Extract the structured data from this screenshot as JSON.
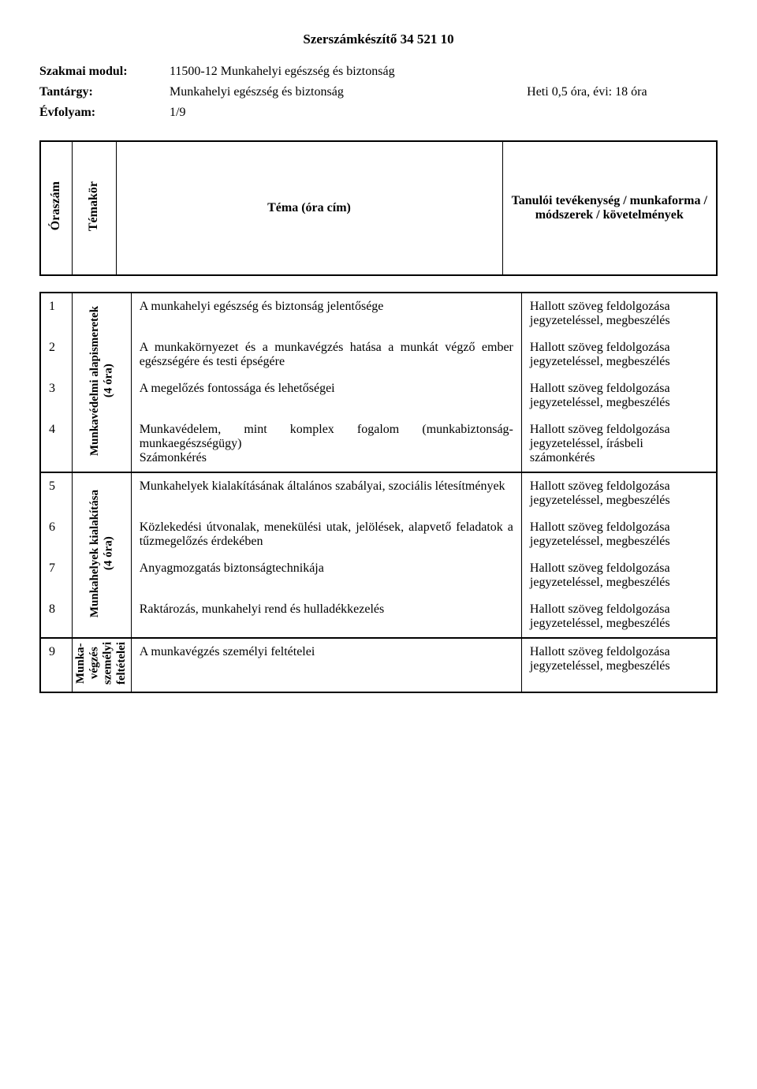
{
  "title": "Szerszámkészítő 34 521 10",
  "meta": {
    "modul_label": "Szakmai modul",
    "modul_value": "11500-12 Munkahelyi egészség és biztonság",
    "tantargy_label": "Tantárgy",
    "tantargy_value": "Munkahelyi egészség és biztonság",
    "hours": "Heti 0,5 óra, évi: 18 óra",
    "evfolyam_label": "Évfolyam",
    "evfolyam_value": "1/9"
  },
  "headers": {
    "oraszam": "Óraszám",
    "temakor": "Témakör",
    "tema": "Téma (óra cím)",
    "activity": "Tanulói tevékenység / munkaforma / módszerek / követelmények"
  },
  "groups": [
    {
      "label_lines": [
        "Munkavédelmi alapismeretek",
        "(4 óra)"
      ],
      "rows": [
        {
          "n": "1",
          "topic": "A munkahelyi egészség és biztonság jelentősége",
          "act": "Hallott szöveg feldolgozása jegyzeteléssel, megbeszélés"
        },
        {
          "n": "2",
          "topic": "A munkakörnyezet és a munkavégzés hatása a munkát végző ember egészségére és testi épségére",
          "act": "Hallott szöveg feldolgozása jegyzeteléssel, megbeszélés"
        },
        {
          "n": "3",
          "topic": "A megelőzés fontossága és lehetőségei",
          "act": "Hallott szöveg feldolgozása jegyzeteléssel, megbeszélés"
        },
        {
          "n": "4",
          "topic": "Munkavédelem, mint komplex fogalom (munkabiztonság-munkaegészségügy)\nSzámonkérés",
          "act": "Hallott szöveg feldolgozása jegyzeteléssel, írásbeli számonkérés"
        }
      ]
    },
    {
      "label_lines": [
        "Munkahelyek kialakítása",
        "(4 óra)"
      ],
      "rows": [
        {
          "n": "5",
          "topic": "Munkahelyek kialakításának általános szabályai, szociális létesítmények",
          "act": "Hallott szöveg feldolgozása jegyzeteléssel, megbeszélés"
        },
        {
          "n": "6",
          "topic": "Közlekedési útvonalak, menekülési utak, jelölések, alapvető feladatok a tűzmegelőzés érdekében",
          "act": "Hallott szöveg feldolgozása jegyzeteléssel, megbeszélés"
        },
        {
          "n": "7",
          "topic": "Anyagmozgatás biztonságtechnikája",
          "act": "Hallott szöveg feldolgozása jegyzeteléssel, megbeszélés"
        },
        {
          "n": "8",
          "topic": "Raktározás, munkahelyi rend és hulladékkezelés",
          "act": "Hallott szöveg feldolgozása jegyzeteléssel, megbeszélés"
        }
      ]
    },
    {
      "label_lines": [
        "Munka-",
        "végzés",
        "személyi",
        "feltételei"
      ],
      "rows": [
        {
          "n": "9",
          "topic": "A munkavégzés személyi feltételei",
          "act": "Hallott szöveg feldolgozása jegyzeteléssel, megbeszélés"
        }
      ]
    }
  ]
}
